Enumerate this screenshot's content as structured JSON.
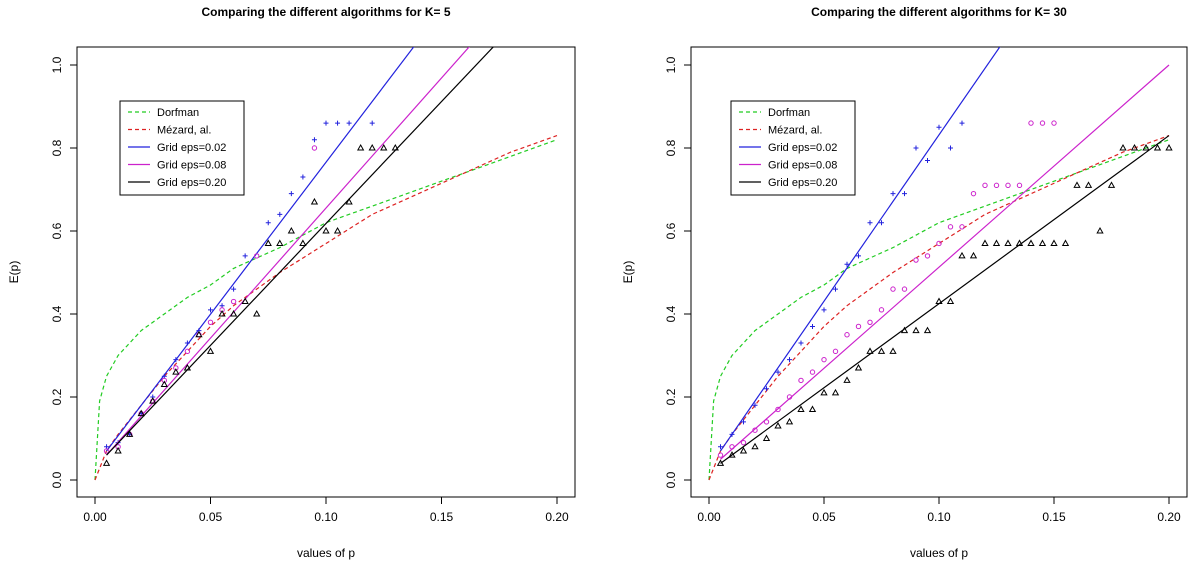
{
  "chart_data": [
    {
      "type": "line",
      "title": "Comparing the different algorithms for K= 5",
      "xlabel": "values of p",
      "ylabel": "E(p)",
      "xlim": [
        0,
        0.2
      ],
      "ylim": [
        0,
        1.0
      ],
      "xticks": [
        "0.00",
        "0.05",
        "0.10",
        "0.15",
        "0.20"
      ],
      "yticks": [
        "0.0",
        "0.2",
        "0.4",
        "0.6",
        "0.8",
        "1.0"
      ],
      "legend_position": "top-left",
      "series": [
        {
          "name": "Dorfman",
          "color": "#22cc22",
          "style": "dashed",
          "kind": "curve",
          "x": [
            0,
            0.002,
            0.005,
            0.01,
            0.02,
            0.03,
            0.04,
            0.05,
            0.06,
            0.08,
            0.1,
            0.12,
            0.14,
            0.16,
            0.18,
            0.2
          ],
          "y": [
            0,
            0.19,
            0.25,
            0.3,
            0.36,
            0.4,
            0.44,
            0.47,
            0.51,
            0.56,
            0.62,
            0.66,
            0.7,
            0.74,
            0.78,
            0.82
          ]
        },
        {
          "name": "Mézard, al.",
          "color": "#dd2222",
          "style": "dashed",
          "kind": "curve",
          "x": [
            0,
            0.005,
            0.01,
            0.02,
            0.03,
            0.04,
            0.05,
            0.06,
            0.08,
            0.1,
            0.12,
            0.14,
            0.16,
            0.18,
            0.2
          ],
          "y": [
            0,
            0.07,
            0.11,
            0.18,
            0.25,
            0.31,
            0.37,
            0.42,
            0.5,
            0.57,
            0.64,
            0.69,
            0.74,
            0.79,
            0.83
          ]
        },
        {
          "name": "Grid eps=0.02",
          "color": "#2222dd",
          "style": "solid",
          "kind": "fit",
          "x": [
            0.005,
            0.132
          ],
          "y": [
            0.07,
            1.0
          ],
          "points": {
            "marker": "plus",
            "x": [
              0.005,
              0.01,
              0.015,
              0.02,
              0.025,
              0.03,
              0.035,
              0.04,
              0.045,
              0.05,
              0.055,
              0.06,
              0.065,
              0.075,
              0.08,
              0.085,
              0.09,
              0.095,
              0.1,
              0.105,
              0.11,
              0.12
            ],
            "y": [
              0.08,
              0.09,
              0.11,
              0.16,
              0.2,
              0.25,
              0.29,
              0.33,
              0.36,
              0.41,
              0.42,
              0.46,
              0.54,
              0.62,
              0.64,
              0.69,
              0.73,
              0.82,
              0.86,
              0.86,
              0.86,
              0.86
            ]
          }
        },
        {
          "name": "Grid eps=0.08",
          "color": "#cc22cc",
          "style": "solid",
          "kind": "fit",
          "x": [
            0.005,
            0.155
          ],
          "y": [
            0.06,
            1.0
          ],
          "points": {
            "marker": "circle",
            "x": [
              0.005,
              0.01,
              0.015,
              0.02,
              0.025,
              0.03,
              0.035,
              0.04,
              0.045,
              0.05,
              0.055,
              0.06,
              0.07,
              0.095
            ],
            "y": [
              0.07,
              0.08,
              0.11,
              0.16,
              0.19,
              0.24,
              0.27,
              0.31,
              0.35,
              0.38,
              0.41,
              0.43,
              0.54,
              0.8
            ]
          }
        },
        {
          "name": "Grid eps=0.20",
          "color": "#000000",
          "style": "solid",
          "kind": "fit",
          "x": [
            0.005,
            0.165
          ],
          "y": [
            0.06,
            1.0
          ],
          "points": {
            "marker": "triangle",
            "x": [
              0.005,
              0.01,
              0.015,
              0.02,
              0.025,
              0.03,
              0.035,
              0.04,
              0.045,
              0.05,
              0.055,
              0.06,
              0.065,
              0.07,
              0.075,
              0.08,
              0.085,
              0.09,
              0.095,
              0.1,
              0.105,
              0.11,
              0.115,
              0.12,
              0.125,
              0.13
            ],
            "y": [
              0.04,
              0.07,
              0.11,
              0.16,
              0.19,
              0.23,
              0.26,
              0.27,
              0.35,
              0.31,
              0.4,
              0.4,
              0.43,
              0.4,
              0.57,
              0.57,
              0.6,
              0.57,
              0.67,
              0.6,
              0.6,
              0.67,
              0.8,
              0.8,
              0.8,
              0.8
            ]
          }
        }
      ]
    },
    {
      "type": "line",
      "title": "Comparing the different algorithms for K= 30",
      "xlabel": "values of p",
      "ylabel": "E(p)",
      "xlim": [
        0,
        0.2
      ],
      "ylim": [
        0,
        1.0
      ],
      "xticks": [
        "0.00",
        "0.05",
        "0.10",
        "0.15",
        "0.20"
      ],
      "yticks": [
        "0.0",
        "0.2",
        "0.4",
        "0.6",
        "0.8",
        "1.0"
      ],
      "legend_position": "top-left",
      "series": [
        {
          "name": "Dorfman",
          "color": "#22cc22",
          "style": "dashed",
          "kind": "curve",
          "x": [
            0,
            0.002,
            0.005,
            0.01,
            0.02,
            0.03,
            0.04,
            0.05,
            0.06,
            0.08,
            0.1,
            0.12,
            0.14,
            0.16,
            0.18,
            0.2
          ],
          "y": [
            0,
            0.19,
            0.25,
            0.3,
            0.36,
            0.4,
            0.44,
            0.47,
            0.51,
            0.56,
            0.62,
            0.66,
            0.7,
            0.74,
            0.78,
            0.82
          ]
        },
        {
          "name": "Mézard, al.",
          "color": "#dd2222",
          "style": "dashed",
          "kind": "curve",
          "x": [
            0,
            0.005,
            0.01,
            0.02,
            0.03,
            0.04,
            0.05,
            0.06,
            0.08,
            0.1,
            0.12,
            0.14,
            0.16,
            0.18,
            0.2
          ],
          "y": [
            0,
            0.07,
            0.11,
            0.18,
            0.25,
            0.31,
            0.37,
            0.42,
            0.5,
            0.57,
            0.64,
            0.69,
            0.74,
            0.79,
            0.83
          ]
        },
        {
          "name": "Grid eps=0.02",
          "color": "#2222dd",
          "style": "solid",
          "kind": "fit",
          "x": [
            0.005,
            0.121
          ],
          "y": [
            0.07,
            1.0
          ],
          "points": {
            "marker": "plus",
            "x": [
              0.005,
              0.01,
              0.015,
              0.02,
              0.025,
              0.03,
              0.035,
              0.04,
              0.045,
              0.05,
              0.055,
              0.06,
              0.065,
              0.07,
              0.075,
              0.08,
              0.085,
              0.09,
              0.095,
              0.1,
              0.105,
              0.11
            ],
            "y": [
              0.08,
              0.11,
              0.14,
              0.18,
              0.22,
              0.26,
              0.29,
              0.33,
              0.37,
              0.41,
              0.46,
              0.52,
              0.54,
              0.62,
              0.62,
              0.69,
              0.69,
              0.8,
              0.77,
              0.85,
              0.8,
              0.86
            ]
          }
        },
        {
          "name": "Grid eps=0.08",
          "color": "#cc22cc",
          "style": "solid",
          "kind": "fit",
          "x": [
            0.005,
            0.2
          ],
          "y": [
            0.05,
            1.0
          ],
          "points": {
            "marker": "circle",
            "x": [
              0.005,
              0.01,
              0.015,
              0.02,
              0.025,
              0.03,
              0.035,
              0.04,
              0.045,
              0.05,
              0.055,
              0.06,
              0.065,
              0.07,
              0.075,
              0.08,
              0.085,
              0.09,
              0.095,
              0.1,
              0.105,
              0.11,
              0.115,
              0.12,
              0.125,
              0.13,
              0.135,
              0.14,
              0.145,
              0.15
            ],
            "y": [
              0.06,
              0.08,
              0.09,
              0.12,
              0.14,
              0.17,
              0.2,
              0.24,
              0.26,
              0.29,
              0.31,
              0.35,
              0.37,
              0.38,
              0.41,
              0.46,
              0.46,
              0.53,
              0.54,
              0.57,
              0.61,
              0.61,
              0.69,
              0.71,
              0.71,
              0.71,
              0.71,
              0.86,
              0.86,
              0.86
            ]
          }
        },
        {
          "name": "Grid eps=0.20",
          "color": "#000000",
          "style": "solid",
          "kind": "fit",
          "x": [
            0.005,
            0.2
          ],
          "y": [
            0.04,
            0.83
          ],
          "points": {
            "marker": "triangle",
            "x": [
              0.005,
              0.01,
              0.015,
              0.02,
              0.025,
              0.03,
              0.035,
              0.04,
              0.045,
              0.05,
              0.055,
              0.06,
              0.065,
              0.07,
              0.075,
              0.08,
              0.085,
              0.09,
              0.095,
              0.1,
              0.105,
              0.11,
              0.115,
              0.12,
              0.125,
              0.13,
              0.135,
              0.14,
              0.145,
              0.15,
              0.155,
              0.16,
              0.165,
              0.17,
              0.175,
              0.18,
              0.185,
              0.19,
              0.195,
              0.2
            ],
            "y": [
              0.04,
              0.06,
              0.07,
              0.08,
              0.1,
              0.13,
              0.14,
              0.17,
              0.17,
              0.21,
              0.21,
              0.24,
              0.27,
              0.31,
              0.31,
              0.31,
              0.36,
              0.36,
              0.36,
              0.43,
              0.43,
              0.54,
              0.54,
              0.57,
              0.57,
              0.57,
              0.57,
              0.57,
              0.57,
              0.57,
              0.57,
              0.71,
              0.71,
              0.6,
              0.71,
              0.8,
              0.8,
              0.8,
              0.8,
              0.8
            ]
          }
        }
      ]
    }
  ]
}
